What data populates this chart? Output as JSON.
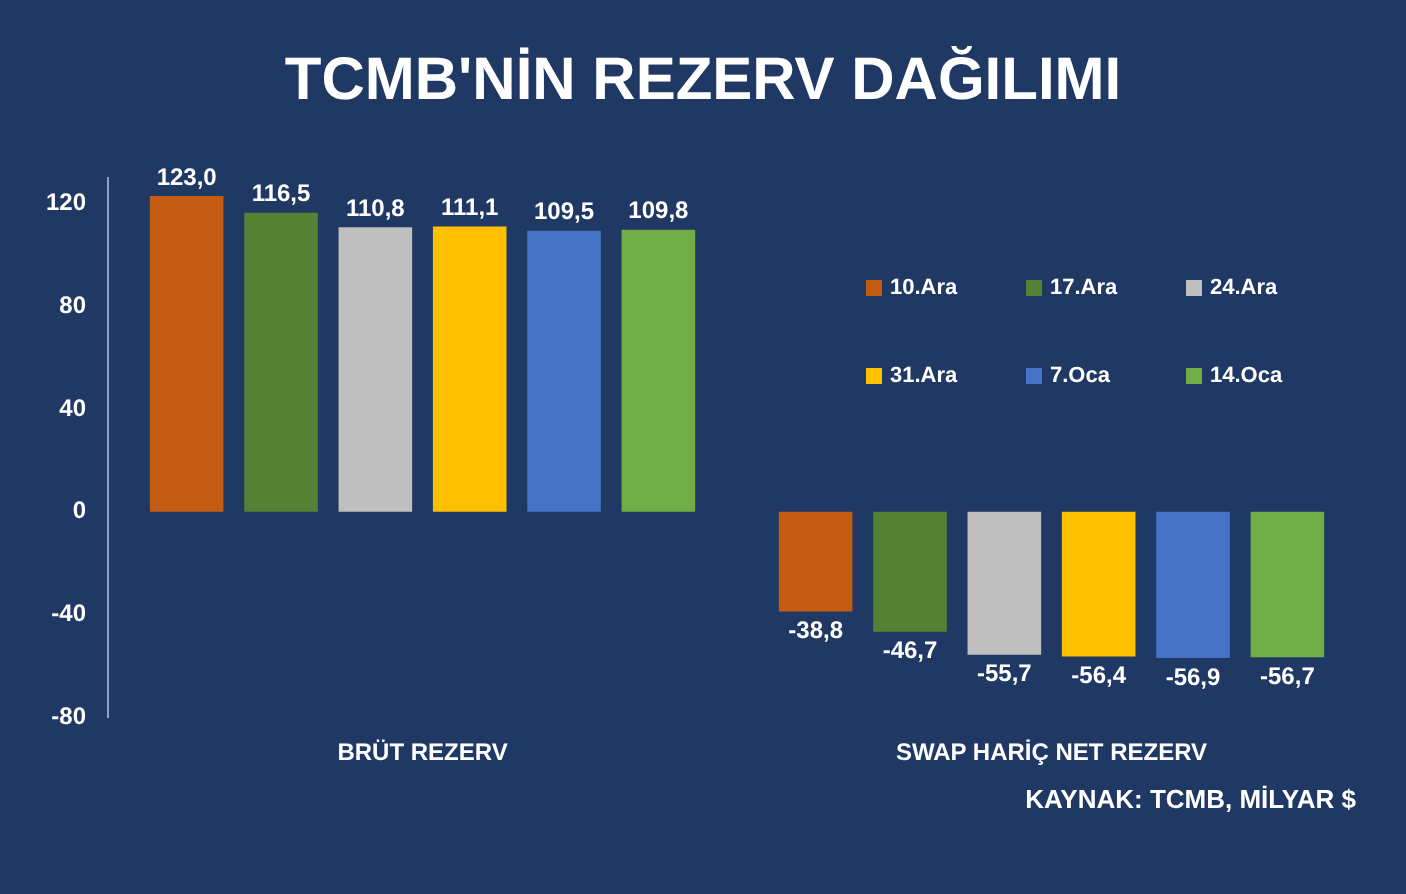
{
  "chart_data": {
    "type": "bar",
    "title": "TCMB'NİN REZERV DAĞILIMI",
    "categories": [
      "BRÜT REZERV",
      "SWAP HARİÇ NET REZERV"
    ],
    "series": [
      {
        "name": "10.Ara",
        "color": "#c55a11",
        "values": [
          123.0,
          -38.8
        ],
        "value_labels": [
          "123,0",
          "-38,8"
        ]
      },
      {
        "name": "17.Ara",
        "color": "#548235",
        "values": [
          116.5,
          -46.7
        ],
        "value_labels": [
          "116,5",
          "-46,7"
        ]
      },
      {
        "name": "24.Ara",
        "color": "#bfbfbf",
        "values": [
          110.8,
          -55.7
        ],
        "value_labels": [
          "110,8",
          "-55,7"
        ]
      },
      {
        "name": "31.Ara",
        "color": "#ffc000",
        "values": [
          111.1,
          -56.4
        ],
        "value_labels": [
          "111,1",
          "-56,4"
        ]
      },
      {
        "name": "7.Oca",
        "color": "#4472c4",
        "values": [
          109.5,
          -56.9
        ],
        "value_labels": [
          "109,5",
          "-56,9"
        ]
      },
      {
        "name": "14.Oca",
        "color": "#70ad47",
        "values": [
          109.8,
          -56.7
        ],
        "value_labels": [
          "109,8",
          "-56,7"
        ]
      }
    ],
    "ylim": [
      -80,
      130
    ],
    "yticks": [
      -80,
      -40,
      0,
      40,
      80,
      120
    ],
    "grid": false,
    "legend": "top right",
    "annotations": [
      "KAYNAK: TCMB, MİLYAR $"
    ]
  }
}
